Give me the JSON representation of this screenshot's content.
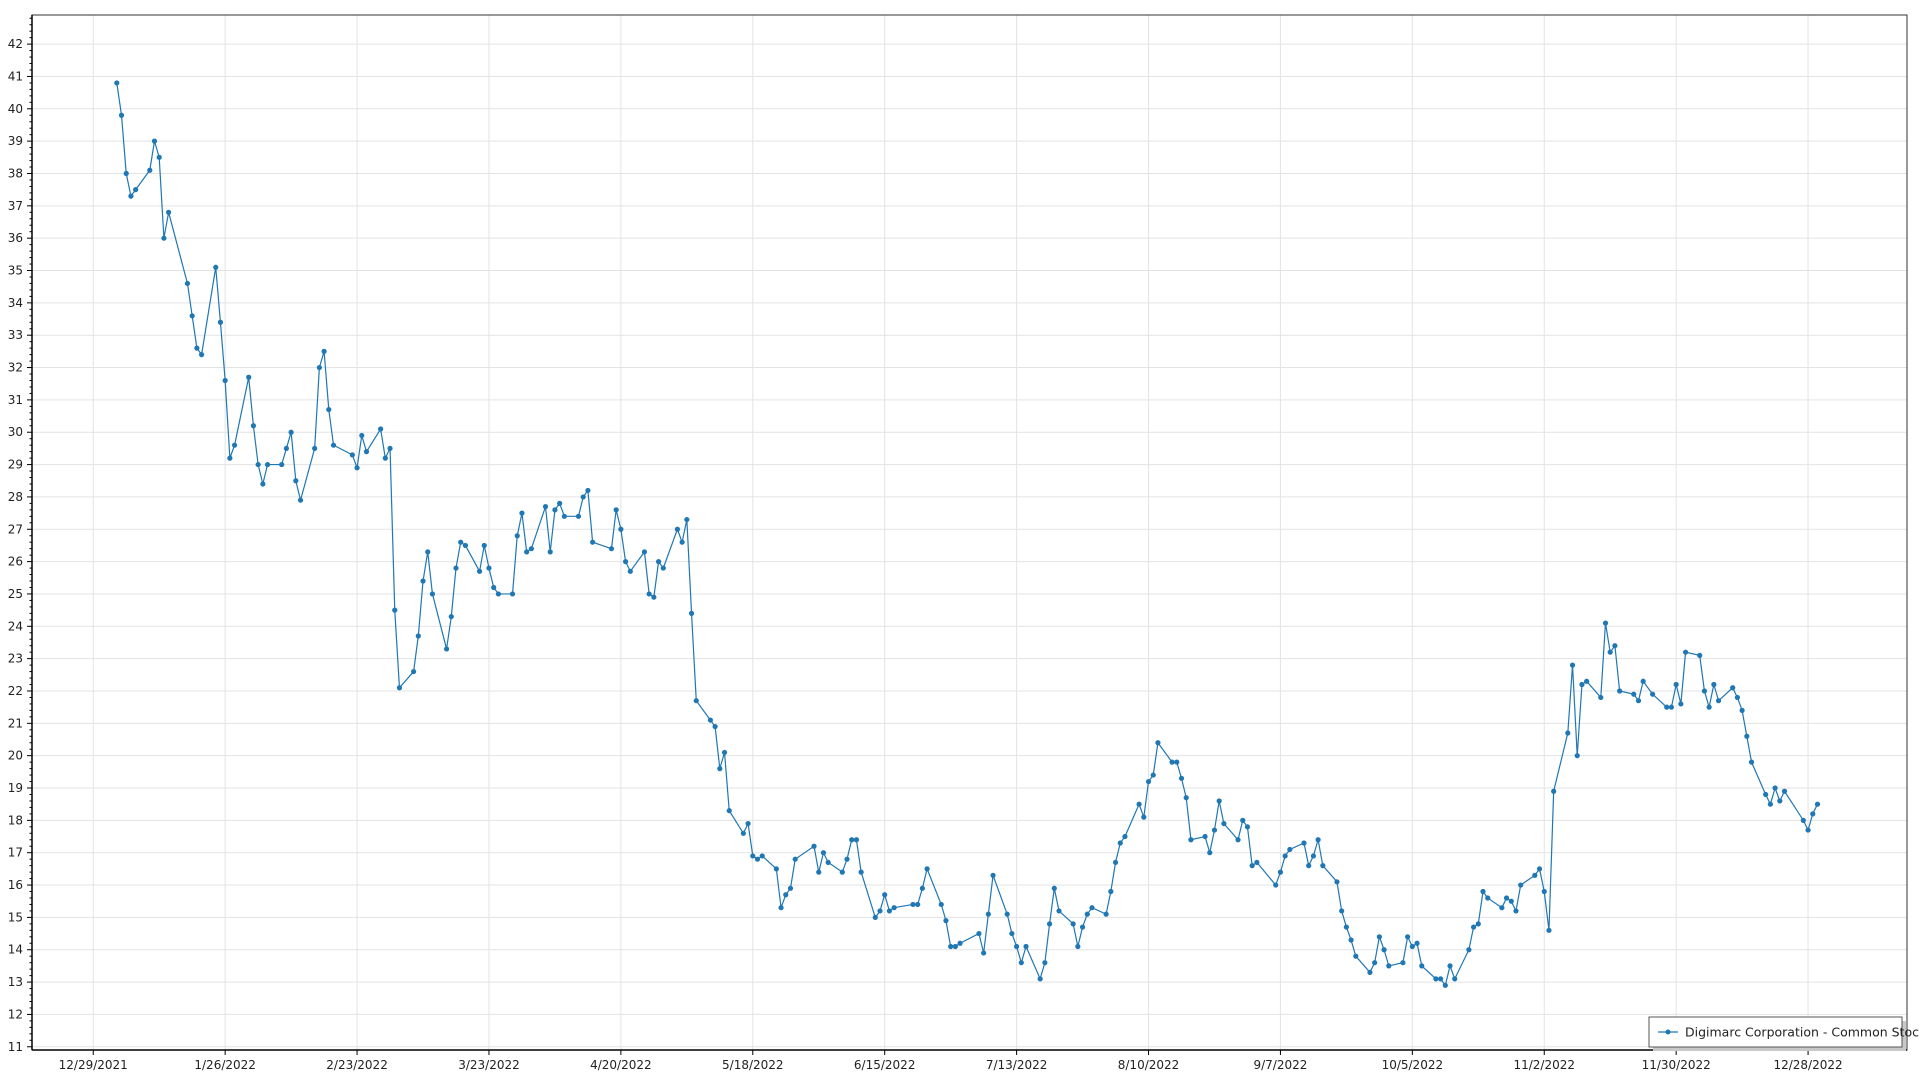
{
  "chart_data": {
    "type": "line",
    "title": "",
    "xlabel": "",
    "ylabel": "",
    "xlim": [
      "2021-12-16",
      "2023-01-18"
    ],
    "ylim": [
      10.9,
      42.9
    ],
    "grid": true,
    "legend_position": "bottom-right",
    "x_ticks": [
      "12/29/2021",
      "1/26/2022",
      "2/23/2022",
      "3/23/2022",
      "4/20/2022",
      "5/18/2022",
      "6/15/2022",
      "7/13/2022",
      "8/10/2022",
      "9/7/2022",
      "10/5/2022",
      "11/2/2022",
      "11/30/2022",
      "12/28/2022"
    ],
    "x_tick_dates": [
      "2021-12-29",
      "2022-01-26",
      "2022-02-23",
      "2022-03-23",
      "2022-04-20",
      "2022-05-18",
      "2022-06-15",
      "2022-07-13",
      "2022-08-10",
      "2022-09-07",
      "2022-10-05",
      "2022-11-02",
      "2022-11-30",
      "2022-12-28"
    ],
    "y_ticks": [
      11,
      12,
      13,
      14,
      15,
      16,
      17,
      18,
      19,
      20,
      21,
      22,
      23,
      24,
      25,
      26,
      27,
      28,
      29,
      30,
      31,
      32,
      33,
      34,
      35,
      36,
      37,
      38,
      39,
      40,
      41,
      42
    ],
    "series": [
      {
        "name": "Digimarc Corporation - Common Stock",
        "color": "#1f77b4",
        "marker": "circle",
        "months": {
          "2022-01": [
            [
              3,
              40.8
            ],
            [
              4,
              39.8
            ],
            [
              5,
              38.0
            ],
            [
              6,
              37.3
            ],
            [
              7,
              37.5
            ],
            [
              10,
              38.1
            ],
            [
              11,
              39.0
            ],
            [
              12,
              38.5
            ],
            [
              13,
              36.0
            ],
            [
              14,
              36.8
            ],
            [
              18,
              34.6
            ],
            [
              19,
              33.6
            ],
            [
              20,
              32.6
            ],
            [
              21,
              32.4
            ],
            [
              24,
              35.1
            ],
            [
              25,
              33.4
            ],
            [
              26,
              31.6
            ],
            [
              27,
              29.2
            ],
            [
              28,
              29.6
            ],
            [
              31,
              31.7
            ]
          ],
          "2022-02": [
            [
              1,
              30.2
            ],
            [
              2,
              29.0
            ],
            [
              3,
              28.4
            ],
            [
              4,
              29.0
            ],
            [
              7,
              29.0
            ],
            [
              8,
              29.5
            ],
            [
              9,
              30.0
            ],
            [
              10,
              28.5
            ],
            [
              11,
              27.9
            ],
            [
              14,
              29.5
            ],
            [
              15,
              32.0
            ],
            [
              16,
              32.5
            ],
            [
              17,
              30.7
            ],
            [
              18,
              29.6
            ],
            [
              22,
              29.3
            ],
            [
              23,
              28.9
            ],
            [
              24,
              29.9
            ],
            [
              25,
              29.4
            ],
            [
              28,
              30.1
            ]
          ],
          "2022-03": [
            [
              1,
              29.2
            ],
            [
              2,
              29.5
            ],
            [
              3,
              24.5
            ],
            [
              4,
              22.1
            ],
            [
              7,
              22.6
            ],
            [
              8,
              23.7
            ],
            [
              9,
              25.4
            ],
            [
              10,
              26.3
            ],
            [
              11,
              25.0
            ],
            [
              14,
              23.3
            ],
            [
              15,
              24.3
            ],
            [
              16,
              25.8
            ],
            [
              17,
              26.6
            ],
            [
              18,
              26.5
            ],
            [
              21,
              25.7
            ],
            [
              22,
              26.5
            ],
            [
              23,
              25.8
            ],
            [
              24,
              25.2
            ],
            [
              25,
              25.0
            ],
            [
              28,
              25.0
            ],
            [
              29,
              26.8
            ],
            [
              30,
              27.5
            ],
            [
              31,
              26.3
            ]
          ],
          "2022-04": [
            [
              1,
              26.4
            ],
            [
              4,
              27.7
            ],
            [
              5,
              26.3
            ],
            [
              6,
              27.6
            ],
            [
              7,
              27.8
            ],
            [
              8,
              27.4
            ],
            [
              11,
              27.4
            ],
            [
              12,
              28.0
            ],
            [
              13,
              28.2
            ],
            [
              14,
              26.6
            ],
            [
              18,
              26.4
            ],
            [
              19,
              27.6
            ],
            [
              20,
              27.0
            ],
            [
              21,
              26.0
            ],
            [
              22,
              25.7
            ],
            [
              25,
              26.3
            ],
            [
              26,
              25.0
            ],
            [
              27,
              24.9
            ],
            [
              28,
              26.0
            ],
            [
              29,
              25.8
            ]
          ],
          "2022-05": [
            [
              2,
              27.0
            ],
            [
              3,
              26.6
            ],
            [
              4,
              27.3
            ],
            [
              5,
              24.4
            ],
            [
              6,
              21.7
            ],
            [
              9,
              21.1
            ],
            [
              10,
              20.9
            ],
            [
              11,
              19.6
            ],
            [
              12,
              20.1
            ],
            [
              13,
              18.3
            ],
            [
              16,
              17.6
            ],
            [
              17,
              17.9
            ],
            [
              18,
              16.9
            ],
            [
              19,
              16.8
            ],
            [
              20,
              16.9
            ],
            [
              23,
              16.5
            ],
            [
              24,
              15.3
            ],
            [
              25,
              15.7
            ],
            [
              26,
              15.9
            ],
            [
              27,
              16.8
            ],
            [
              31,
              17.2
            ]
          ],
          "2022-06": [
            [
              1,
              16.4
            ],
            [
              2,
              17.0
            ],
            [
              3,
              16.7
            ],
            [
              6,
              16.4
            ],
            [
              7,
              16.8
            ],
            [
              8,
              17.4
            ],
            [
              9,
              17.4
            ],
            [
              10,
              16.4
            ],
            [
              13,
              15.0
            ],
            [
              14,
              15.2
            ],
            [
              15,
              15.7
            ],
            [
              16,
              15.2
            ],
            [
              17,
              15.3
            ],
            [
              21,
              15.4
            ],
            [
              22,
              15.4
            ],
            [
              23,
              15.9
            ],
            [
              24,
              16.5
            ],
            [
              27,
              15.4
            ],
            [
              28,
              14.9
            ],
            [
              29,
              14.1
            ],
            [
              30,
              14.1
            ]
          ],
          "2022-07": [
            [
              1,
              14.2
            ],
            [
              5,
              14.5
            ],
            [
              6,
              13.9
            ],
            [
              7,
              15.1
            ],
            [
              8,
              16.3
            ],
            [
              11,
              15.1
            ],
            [
              12,
              14.5
            ],
            [
              13,
              14.1
            ],
            [
              14,
              13.6
            ],
            [
              15,
              14.1
            ],
            [
              18,
              13.1
            ],
            [
              19,
              13.6
            ],
            [
              20,
              14.8
            ],
            [
              21,
              15.9
            ],
            [
              22,
              15.2
            ],
            [
              25,
              14.8
            ],
            [
              26,
              14.1
            ],
            [
              27,
              14.7
            ],
            [
              28,
              15.1
            ],
            [
              29,
              15.3
            ]
          ],
          "2022-08": [
            [
              1,
              15.1
            ],
            [
              2,
              15.8
            ],
            [
              3,
              16.7
            ],
            [
              4,
              17.3
            ],
            [
              5,
              17.5
            ],
            [
              8,
              18.5
            ],
            [
              9,
              18.1
            ],
            [
              10,
              19.2
            ],
            [
              11,
              19.4
            ],
            [
              12,
              20.4
            ],
            [
              15,
              19.8
            ],
            [
              16,
              19.8
            ],
            [
              17,
              19.3
            ],
            [
              18,
              18.7
            ],
            [
              19,
              17.4
            ],
            [
              22,
              17.5
            ],
            [
              23,
              17.0
            ],
            [
              24,
              17.7
            ],
            [
              25,
              18.6
            ],
            [
              26,
              17.9
            ],
            [
              29,
              17.4
            ],
            [
              30,
              18.0
            ],
            [
              31,
              17.8
            ]
          ],
          "2022-09": [
            [
              1,
              16.6
            ],
            [
              2,
              16.7
            ],
            [
              6,
              16.0
            ],
            [
              7,
              16.4
            ],
            [
              8,
              16.9
            ],
            [
              9,
              17.1
            ],
            [
              12,
              17.3
            ],
            [
              13,
              16.6
            ],
            [
              14,
              16.9
            ],
            [
              15,
              17.4
            ],
            [
              16,
              16.6
            ],
            [
              19,
              16.1
            ],
            [
              20,
              15.2
            ],
            [
              21,
              14.7
            ],
            [
              22,
              14.3
            ],
            [
              23,
              13.8
            ],
            [
              26,
              13.3
            ],
            [
              27,
              13.6
            ],
            [
              28,
              14.4
            ],
            [
              29,
              14.0
            ],
            [
              30,
              13.5
            ]
          ],
          "2022-10": [
            [
              3,
              13.6
            ],
            [
              4,
              14.4
            ],
            [
              5,
              14.1
            ],
            [
              6,
              14.2
            ],
            [
              7,
              13.5
            ],
            [
              10,
              13.1
            ],
            [
              11,
              13.1
            ],
            [
              12,
              12.9
            ],
            [
              13,
              13.5
            ],
            [
              14,
              13.1
            ],
            [
              17,
              14.0
            ],
            [
              18,
              14.7
            ],
            [
              19,
              14.8
            ],
            [
              20,
              15.8
            ],
            [
              21,
              15.6
            ],
            [
              24,
              15.3
            ],
            [
              25,
              15.6
            ],
            [
              26,
              15.5
            ],
            [
              27,
              15.2
            ],
            [
              28,
              16.0
            ],
            [
              31,
              16.3
            ]
          ],
          "2022-11": [
            [
              1,
              16.5
            ],
            [
              2,
              15.8
            ],
            [
              3,
              14.6
            ],
            [
              4,
              18.9
            ],
            [
              7,
              20.7
            ],
            [
              8,
              22.8
            ],
            [
              9,
              20.0
            ],
            [
              10,
              22.2
            ],
            [
              11,
              22.3
            ],
            [
              14,
              21.8
            ],
            [
              15,
              24.1
            ],
            [
              16,
              23.2
            ],
            [
              17,
              23.4
            ],
            [
              18,
              22.0
            ],
            [
              21,
              21.9
            ],
            [
              22,
              21.7
            ],
            [
              23,
              22.3
            ],
            [
              25,
              21.9
            ],
            [
              28,
              21.5
            ],
            [
              29,
              21.5
            ],
            [
              30,
              22.2
            ]
          ],
          "2022-12": [
            [
              1,
              21.6
            ],
            [
              2,
              23.2
            ],
            [
              5,
              23.1
            ],
            [
              6,
              22.0
            ],
            [
              7,
              21.5
            ],
            [
              8,
              22.2
            ],
            [
              9,
              21.7
            ],
            [
              12,
              22.1
            ],
            [
              13,
              21.8
            ],
            [
              14,
              21.4
            ],
            [
              15,
              20.6
            ],
            [
              16,
              19.8
            ],
            [
              19,
              18.8
            ],
            [
              20,
              18.5
            ],
            [
              21,
              19.0
            ],
            [
              22,
              18.6
            ],
            [
              23,
              18.9
            ],
            [
              27,
              18.0
            ],
            [
              28,
              17.7
            ],
            [
              29,
              18.2
            ],
            [
              30,
              18.5
            ]
          ]
        }
      }
    ]
  }
}
